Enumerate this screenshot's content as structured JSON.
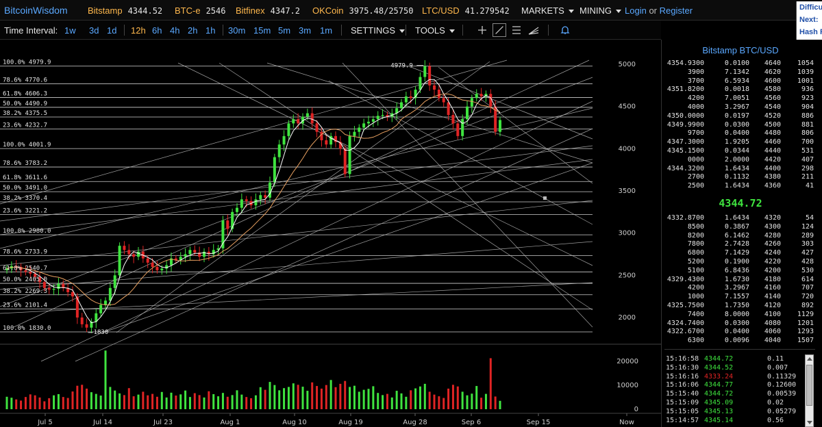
{
  "brand": "BitcoinWisdom",
  "tickers": [
    {
      "exchange": "Bitstamp",
      "value": "4344.52"
    },
    {
      "exchange": "BTC-e",
      "value": "2546"
    },
    {
      "exchange": "Bitfinex",
      "value": "4347.2"
    },
    {
      "exchange": "OKCoin",
      "value": "3975.48/25750"
    },
    {
      "exchange": "LTC/USD",
      "value": "41.279542"
    }
  ],
  "menus": {
    "markets": "MARKETS",
    "mining": "MINING",
    "login": "Login",
    "or": "or",
    "register": "Register"
  },
  "sidebox": [
    "Difficu",
    "Next:",
    "Hash R"
  ],
  "toolbar": {
    "time_interval_label": "Time Interval:",
    "intervals": [
      "1w",
      "3d",
      "1d",
      "12h",
      "6h",
      "4h",
      "2h",
      "1h",
      "30m",
      "15m",
      "5m",
      "3m",
      "1m"
    ],
    "active_interval": "12h",
    "settings": "SETTINGS",
    "tools": "TOOLS"
  },
  "chart_data": {
    "type": "candlestick",
    "price_axis": {
      "ticks": [
        5000,
        4500,
        4000,
        3500,
        3000,
        2500,
        2000
      ]
    },
    "volume_axis": {
      "ticks": [
        20000,
        10000,
        0
      ]
    },
    "x_ticks": [
      "Jul 5",
      "Jul 14",
      "Jul 23",
      "Aug 1",
      "Aug 10",
      "Aug 19",
      "Aug 28",
      "Sep 6",
      "Sep 15",
      "Now"
    ],
    "fib_upper": [
      {
        "label": "100.0% 4979.9",
        "value": 4979.9
      },
      {
        "label": "78.6% 4770.6",
        "value": 4770.6
      },
      {
        "label": "61.8% 4606.3",
        "value": 4606.3
      },
      {
        "label": "50.0% 4490.9",
        "value": 4490.9
      },
      {
        "label": "38.2% 4375.5",
        "value": 4375.5
      },
      {
        "label": "23.6% 4232.7",
        "value": 4232.7
      },
      {
        "label": "100.0% 4001.9",
        "value": 4001.9
      }
    ],
    "fib_middle": [
      {
        "label": "78.6% 3783.2",
        "value": 3783.2
      },
      {
        "label": "61.8% 3611.6",
        "value": 3611.6
      },
      {
        "label": "50.0% 3491.0",
        "value": 3491.0
      },
      {
        "label": "38.2% 3370.4",
        "value": 3370.4
      },
      {
        "label": "23.6% 3221.2",
        "value": 3221.2
      },
      {
        "label": "100.0% 2980.0",
        "value": 2980.0
      }
    ],
    "fib_lower": [
      {
        "label": "78.6% 2733.9",
        "value": 2733.9
      },
      {
        "label": "61.8% 2540.7",
        "value": 2540.7
      },
      {
        "label": "50.0% 2405.0",
        "value": 2405.0
      },
      {
        "label": "38.2% 2269.3",
        "value": 2269.3
      },
      {
        "label": "23.6% 2101.4",
        "value": 2101.4
      },
      {
        "label": "100.0% 1830.0",
        "value": 1830.0
      }
    ],
    "high_annotation": "4979.9",
    "low_annotation": "1830",
    "close_series": [
      2580,
      2610,
      2600,
      2560,
      2540,
      2520,
      2480,
      2420,
      2350,
      2330,
      2340,
      2400,
      2350,
      2300,
      2250,
      2000,
      1920,
      1880,
      1950,
      2050,
      2150,
      2200,
      2350,
      2500,
      2850,
      2800,
      2750,
      2720,
      2780,
      2700,
      2650,
      2600,
      2560,
      2580,
      2620,
      2700,
      2680,
      2720,
      2750,
      2800,
      2770,
      2720,
      2780,
      2750,
      2800,
      2820,
      3150,
      3050,
      3250,
      3300,
      3400,
      3380,
      3330,
      3400,
      3450,
      3420,
      3600,
      3900,
      4050,
      4150,
      4300,
      4350,
      4300,
      4380,
      4420,
      4300,
      4200,
      4100,
      4050,
      4150,
      4080,
      4000,
      3700,
      4150,
      4200,
      4250,
      4300,
      4320,
      4350,
      4390,
      4400,
      4380,
      4420,
      4480,
      4550,
      4620,
      4600,
      4700,
      4850,
      4979,
      4750,
      4700,
      4600,
      4550,
      4400,
      4300,
      4150,
      4350,
      4500,
      4600,
      4650,
      4620,
      4650,
      4500,
      4200,
      4340
    ],
    "volume_series": [
      5200,
      4800,
      4100,
      3600,
      5100,
      6200,
      5800,
      4900,
      3300,
      4600,
      5800,
      6300,
      5100,
      4700,
      7400,
      9800,
      10200,
      8600,
      7100,
      6400,
      5700,
      24500,
      9300,
      7800,
      6600,
      5900,
      8800,
      5400,
      6100,
      7300,
      5800,
      6400,
      5200,
      7200,
      4900,
      6900,
      5700,
      6200,
      7800,
      5100,
      6700,
      5900,
      4900,
      7500,
      6300,
      5400,
      6800,
      5200,
      5900,
      7900,
      6100,
      5100,
      4600,
      5800,
      9200,
      8100,
      11400,
      10100,
      7900,
      8800,
      9300,
      10800,
      10200,
      9400,
      7700,
      11200,
      9700,
      8600,
      10100,
      12200,
      9200,
      10600,
      11800,
      9300,
      9800,
      7300,
      8100,
      8500,
      9600,
      6800,
      5900,
      6400,
      4900,
      7700,
      6600,
      5200,
      7900,
      8700,
      9500,
      10600,
      7300,
      6100,
      5400,
      4700,
      8600,
      10200,
      9500,
      7300,
      5800,
      6500,
      9700,
      4800,
      6400,
      21300,
      5300,
      3500
    ]
  },
  "orderbook": {
    "title": "Bitstamp BTC/USD",
    "asks": [
      [
        "4354.9300",
        "0.0100",
        "4640",
        "1054"
      ],
      [
        "3900",
        "7.1342",
        "4620",
        "1039"
      ],
      [
        "3700",
        "6.5934",
        "4600",
        "1001"
      ],
      [
        "4351.8200",
        "0.0018",
        "4580",
        "936"
      ],
      [
        "4200",
        "7.0051",
        "4560",
        "923"
      ],
      [
        "4000",
        "3.2967",
        "4540",
        "904"
      ],
      [
        "4350.0000",
        "0.0197",
        "4520",
        "886"
      ],
      [
        "4349.9900",
        "0.0300",
        "4500",
        "881"
      ],
      [
        "9700",
        "0.0400",
        "4480",
        "806"
      ],
      [
        "4347.3000",
        "1.9205",
        "4460",
        "700"
      ],
      [
        "4345.1500",
        "0.0344",
        "4440",
        "531"
      ],
      [
        "0000",
        "2.0000",
        "4420",
        "407"
      ],
      [
        "4344.3200",
        "1.6434",
        "4400",
        "298"
      ],
      [
        "2700",
        "0.1132",
        "4380",
        "211"
      ],
      [
        "2500",
        "1.6434",
        "4360",
        "41"
      ]
    ],
    "last_price": "4344.72",
    "bids": [
      [
        "4332.8700",
        "1.6434",
        "4320",
        "54"
      ],
      [
        "8500",
        "0.3867",
        "4300",
        "124"
      ],
      [
        "8200",
        "6.1462",
        "4280",
        "289"
      ],
      [
        "7800",
        "2.7428",
        "4260",
        "303"
      ],
      [
        "6800",
        "7.1429",
        "4240",
        "427"
      ],
      [
        "5200",
        "0.1900",
        "4220",
        "428"
      ],
      [
        "5100",
        "6.8436",
        "4200",
        "530"
      ],
      [
        "4329.4300",
        "1.6730",
        "4180",
        "614"
      ],
      [
        "4200",
        "3.2967",
        "4160",
        "707"
      ],
      [
        "1000",
        "7.1557",
        "4140",
        "720"
      ],
      [
        "4325.7500",
        "1.7350",
        "4120",
        "892"
      ],
      [
        "7400",
        "8.0000",
        "4100",
        "1129"
      ],
      [
        "4324.7400",
        "0.0300",
        "4080",
        "1201"
      ],
      [
        "4322.6700",
        "0.0400",
        "4060",
        "1293"
      ],
      [
        "6300",
        "0.0096",
        "4040",
        "1507"
      ]
    ]
  },
  "trades": [
    {
      "time": "15:16:58",
      "price": "4344.72",
      "amount": "0.11",
      "dir": "up"
    },
    {
      "time": "15:16:30",
      "price": "4344.52",
      "amount": "0.007",
      "dir": "up"
    },
    {
      "time": "15:16:16",
      "price": "4333.24",
      "amount": "0.11329",
      "dir": "down"
    },
    {
      "time": "15:16:06",
      "price": "4344.77",
      "amount": "0.12600",
      "dir": "up"
    },
    {
      "time": "15:15:40",
      "price": "4344.72",
      "amount": "0.00539",
      "dir": "up"
    },
    {
      "time": "15:15:09",
      "price": "4345.09",
      "amount": "0.02",
      "dir": "up"
    },
    {
      "time": "15:15:05",
      "price": "4345.13",
      "amount": "0.05279",
      "dir": "up"
    },
    {
      "time": "15:14:57",
      "price": "4345.14",
      "amount": "0.56",
      "dir": "up"
    }
  ],
  "colors": {
    "up": "#3fe43f",
    "down": "#e02424",
    "blue": "#5aa8ff",
    "orange": "#ffb84d",
    "ask": "#e25555",
    "bid": "#3fe43f"
  }
}
